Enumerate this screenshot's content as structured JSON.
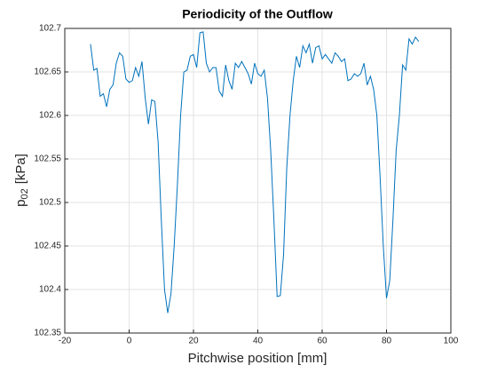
{
  "chart_data": {
    "type": "line",
    "title": "Periodicity of the Outflow",
    "xlabel": "Pitchwise position [mm]",
    "ylabel": {
      "symbol": "p",
      "subscript": "02",
      "unit": "[kPa]"
    },
    "x": [
      -12,
      -11,
      -10,
      -9,
      -8,
      -7,
      -6,
      -5,
      -4,
      -3,
      -2,
      -1,
      0,
      1,
      2,
      3,
      4,
      5,
      6,
      7,
      8,
      9,
      10,
      11,
      12,
      13,
      14,
      15,
      16,
      17,
      18,
      19,
      20,
      21,
      22,
      23,
      24,
      25,
      26,
      27,
      28,
      29,
      30,
      31,
      32,
      33,
      34,
      35,
      36,
      37,
      38,
      39,
      40,
      41,
      42,
      43,
      44,
      45,
      46,
      47,
      48,
      49,
      50,
      51,
      52,
      53,
      54,
      55,
      56,
      57,
      58,
      59,
      60,
      61,
      62,
      63,
      64,
      65,
      66,
      67,
      68,
      69,
      70,
      71,
      72,
      73,
      74,
      75,
      76,
      77,
      78,
      79,
      80,
      81,
      82,
      83,
      84,
      85,
      86,
      87,
      88,
      89,
      90
    ],
    "series": [
      {
        "color": "#0072bd",
        "values": [
          102.682,
          102.652,
          102.654,
          102.622,
          102.625,
          102.61,
          102.63,
          102.635,
          102.66,
          102.672,
          102.668,
          102.642,
          102.638,
          102.64,
          102.655,
          102.645,
          102.662,
          102.62,
          102.59,
          102.618,
          102.616,
          102.57,
          102.48,
          102.4,
          102.373,
          102.395,
          102.45,
          102.52,
          102.6,
          102.65,
          102.652,
          102.668,
          102.67,
          102.655,
          102.695,
          102.696,
          102.66,
          102.65,
          102.655,
          102.655,
          102.628,
          102.622,
          102.658,
          102.64,
          102.63,
          102.66,
          102.655,
          102.662,
          102.655,
          102.648,
          102.636,
          102.66,
          102.648,
          102.645,
          102.652,
          102.62,
          102.56,
          102.48,
          102.392,
          102.393,
          102.44,
          102.54,
          102.6,
          102.64,
          102.668,
          102.655,
          102.68,
          102.672,
          102.682,
          102.66,
          102.678,
          102.68,
          102.665,
          102.67,
          102.665,
          102.66,
          102.672,
          102.668,
          102.662,
          102.665,
          102.64,
          102.642,
          102.648,
          102.645,
          102.648,
          102.66,
          102.635,
          102.645,
          102.63,
          102.6,
          102.53,
          102.45,
          102.39,
          102.41,
          102.48,
          102.56,
          102.6,
          102.658,
          102.652,
          102.688,
          102.682,
          102.69,
          102.685
        ]
      }
    ],
    "xlim": [
      -20,
      100
    ],
    "xticks": [
      -20,
      0,
      20,
      40,
      60,
      80,
      100
    ],
    "ylim": [
      102.35,
      102.7
    ],
    "yticks": [
      102.35,
      102.4,
      102.45,
      102.5,
      102.55,
      102.6,
      102.65,
      102.7
    ],
    "grid": true
  }
}
